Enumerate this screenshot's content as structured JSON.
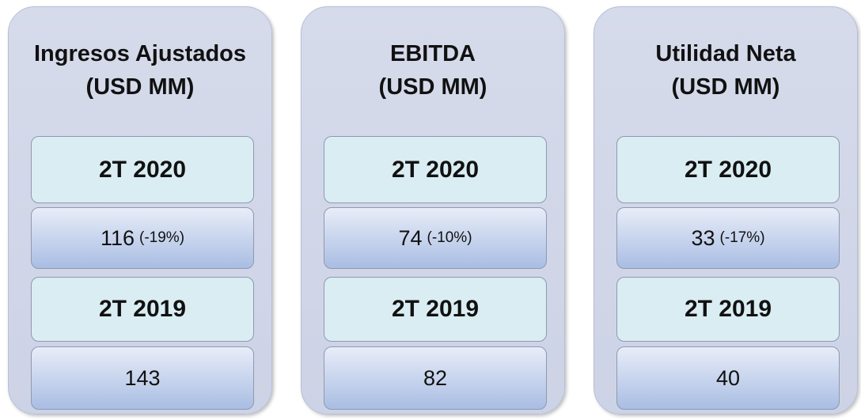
{
  "cards": [
    {
      "title": [
        "Ingresos Ajustados",
        "(USD MM)"
      ],
      "rows": [
        {
          "period": "2T 2020",
          "value": "116",
          "change": "(-19%)"
        },
        {
          "period": "2T 2019",
          "value": "143"
        }
      ]
    },
    {
      "title": [
        "EBITDA",
        "(USD MM)"
      ],
      "rows": [
        {
          "period": "2T 2020",
          "value": "74",
          "change": "(-10%)"
        },
        {
          "period": "2T 2019",
          "value": "82"
        }
      ]
    },
    {
      "title": [
        "Utilidad Neta",
        "(USD MM)"
      ],
      "rows": [
        {
          "period": "2T 2020",
          "value": "33",
          "change": "(-17%)"
        },
        {
          "period": "2T 2019",
          "value": "40"
        }
      ]
    }
  ]
}
